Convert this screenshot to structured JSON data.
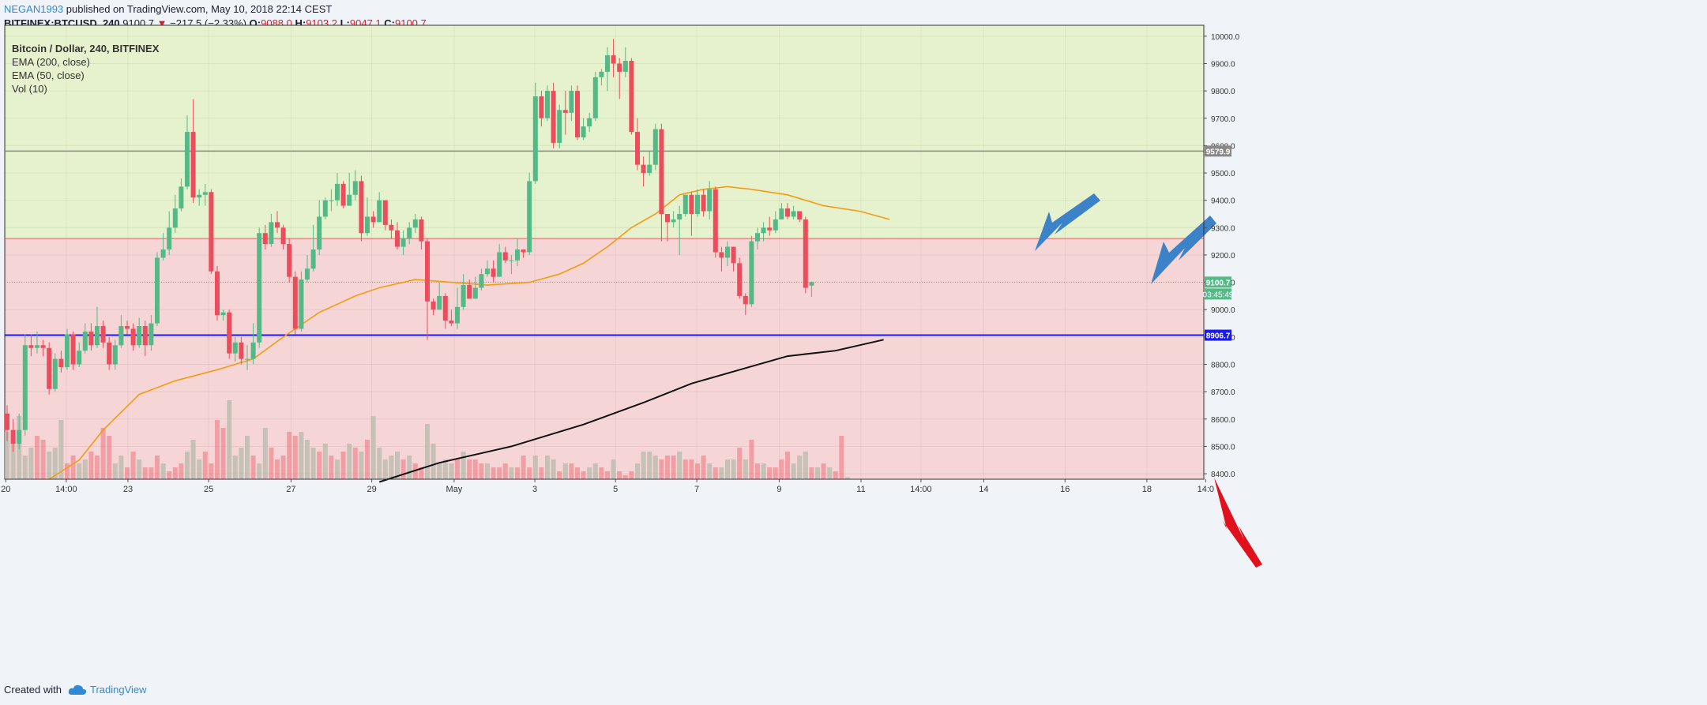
{
  "header": {
    "author": "NEGAN1993",
    "published_text": "published on TradingView.com, May 10, 2018 22:14 CEST",
    "symbol": "BITFINEX:BTCUSD, 240",
    "last": "9100.7",
    "change_arrow": "▼",
    "change": "−217.5 (−2.33%)",
    "o_label": "O:",
    "o_value": "9088.0",
    "h_label": "H:",
    "h_value": "9103.2",
    "l_label": "L:",
    "l_value": "9047.1",
    "c_label": "C:",
    "c_value": "9100.7"
  },
  "legend": {
    "title": "Bitcoin / Dollar, 240, BITFINEX",
    "ema200": "EMA (200, close)",
    "ema50": "EMA (50, close)",
    "vol": "Vol (10)"
  },
  "footer": {
    "created_with": "Created with",
    "brand": "TradingView"
  },
  "colors": {
    "up": "#53b987",
    "down": "#eb4d5c",
    "zone_green": "#e6f2cd",
    "zone_red": "#f5d5d5",
    "support_line": "#1a1aee",
    "ema50": "#f39c12",
    "ema200": "#111111",
    "blue_arrow": "#3b82c8",
    "red_arrow": "#e0101c"
  },
  "chart_data": {
    "type": "candlestick",
    "y_axis": {
      "min": 8380,
      "max": 10040,
      "ticks": [
        10000.0,
        9900.0,
        9800.0,
        9700.0,
        9600.0,
        9500.0,
        9400.0,
        9300.0,
        9200.0,
        9100.0,
        9000.0,
        8900.0,
        8800.0,
        8700.0,
        8600.0,
        8500.0,
        8400.0
      ]
    },
    "x_axis": {
      "labels": [
        "20",
        "14:00",
        "23",
        "25",
        "27",
        "29",
        "May",
        "3",
        "5",
        "7",
        "9",
        "11",
        "14:00",
        "14",
        "16",
        "18",
        "14:0"
      ]
    },
    "price_labels": {
      "upper_line": "9579.9",
      "last_price": "9100.7",
      "countdown": "03:45:49",
      "support": "8906.7"
    },
    "levels": {
      "upper_line": 9579.9,
      "zone_split": 9260,
      "last_price": 9100.7,
      "support": 8906.7
    },
    "candles": [
      [
        8620,
        8560,
        8520,
        8650
      ],
      [
        8560,
        8510,
        8480,
        8600
      ],
      [
        8510,
        8560,
        8490,
        8620
      ],
      [
        8560,
        8870,
        8540,
        8910
      ],
      [
        8870,
        8860,
        8830,
        8910
      ],
      [
        8860,
        8870,
        8840,
        8920
      ],
      [
        8870,
        8860,
        8830,
        8890
      ],
      [
        8860,
        8710,
        8690,
        8880
      ],
      [
        8710,
        8820,
        8700,
        8840
      ],
      [
        8820,
        8790,
        8770,
        8850
      ],
      [
        8790,
        8910,
        8780,
        8930
      ],
      [
        8910,
        8800,
        8780,
        8920
      ],
      [
        8800,
        8850,
        8790,
        8880
      ],
      [
        8850,
        8920,
        8840,
        8950
      ],
      [
        8920,
        8870,
        8850,
        8950
      ],
      [
        8870,
        8940,
        8860,
        9010
      ],
      [
        8940,
        8880,
        8860,
        8960
      ],
      [
        8880,
        8800,
        8780,
        8900
      ],
      [
        8800,
        8870,
        8780,
        8890
      ],
      [
        8870,
        8940,
        8860,
        8980
      ],
      [
        8940,
        8930,
        8910,
        8960
      ],
      [
        8930,
        8870,
        8850,
        8950
      ],
      [
        8870,
        8940,
        8860,
        8970
      ],
      [
        8940,
        8870,
        8830,
        8960
      ],
      [
        8870,
        8950,
        8850,
        8980
      ],
      [
        8950,
        9190,
        8940,
        9210
      ],
      [
        9190,
        9220,
        9180,
        9280
      ],
      [
        9220,
        9300,
        9200,
        9360
      ],
      [
        9300,
        9370,
        9280,
        9420
      ],
      [
        9370,
        9450,
        9360,
        9480
      ],
      [
        9450,
        9650,
        9440,
        9710
      ],
      [
        9650,
        9410,
        9390,
        9770
      ],
      [
        9410,
        9420,
        9380,
        9440
      ],
      [
        9420,
        9430,
        9380,
        9460
      ],
      [
        9430,
        9140,
        9130,
        9440
      ],
      [
        9140,
        8980,
        8960,
        9160
      ],
      [
        8980,
        8990,
        8960,
        9000
      ],
      [
        8990,
        8840,
        8820,
        9000
      ],
      [
        8840,
        8880,
        8810,
        8900
      ],
      [
        8880,
        8820,
        8800,
        8900
      ],
      [
        8820,
        8820,
        8780,
        8870
      ],
      [
        8820,
        8880,
        8800,
        8950
      ],
      [
        8880,
        9280,
        8860,
        9300
      ],
      [
        9280,
        9240,
        9220,
        9310
      ],
      [
        9240,
        9320,
        9230,
        9350
      ],
      [
        9320,
        9300,
        9280,
        9360
      ],
      [
        9300,
        9240,
        9220,
        9310
      ],
      [
        9240,
        9120,
        9100,
        9260
      ],
      [
        9120,
        8930,
        8910,
        9140
      ],
      [
        8930,
        9110,
        8920,
        9140
      ],
      [
        9110,
        9150,
        9100,
        9200
      ],
      [
        9150,
        9220,
        9140,
        9310
      ],
      [
        9220,
        9340,
        9200,
        9400
      ],
      [
        9340,
        9400,
        9330,
        9410
      ],
      [
        9400,
        9400,
        9360,
        9440
      ],
      [
        9400,
        9460,
        9380,
        9500
      ],
      [
        9460,
        9380,
        9370,
        9470
      ],
      [
        9380,
        9420,
        9380,
        9500
      ],
      [
        9420,
        9470,
        9400,
        9510
      ],
      [
        9470,
        9280,
        9250,
        9490
      ],
      [
        9280,
        9340,
        9270,
        9410
      ],
      [
        9340,
        9320,
        9300,
        9360
      ],
      [
        9320,
        9400,
        9320,
        9430
      ],
      [
        9400,
        9310,
        9290,
        9400
      ],
      [
        9310,
        9290,
        9260,
        9330
      ],
      [
        9290,
        9230,
        9220,
        9320
      ],
      [
        9230,
        9260,
        9200,
        9290
      ],
      [
        9260,
        9300,
        9240,
        9320
      ],
      [
        9300,
        9330,
        9280,
        9350
      ],
      [
        9330,
        9250,
        9220,
        9340
      ],
      [
        9250,
        9030,
        8890,
        9260
      ],
      [
        9030,
        9000,
        8980,
        9040
      ],
      [
        9000,
        9050,
        9000,
        9100
      ],
      [
        9050,
        8960,
        8930,
        9060
      ],
      [
        8960,
        8950,
        8940,
        9000
      ],
      [
        8950,
        9010,
        8930,
        9080
      ],
      [
        9010,
        9090,
        9000,
        9130
      ],
      [
        9090,
        9040,
        9040,
        9110
      ],
      [
        9040,
        9080,
        9040,
        9120
      ],
      [
        9080,
        9130,
        9070,
        9150
      ],
      [
        9130,
        9150,
        9120,
        9180
      ],
      [
        9150,
        9120,
        9100,
        9180
      ],
      [
        9120,
        9210,
        9120,
        9240
      ],
      [
        9210,
        9180,
        9170,
        9230
      ],
      [
        9180,
        9180,
        9130,
        9200
      ],
      [
        9180,
        9220,
        9160,
        9260
      ],
      [
        9220,
        9210,
        9190,
        9220
      ],
      [
        9210,
        9470,
        9200,
        9500
      ],
      [
        9470,
        9780,
        9460,
        9830
      ],
      [
        9780,
        9700,
        9670,
        9800
      ],
      [
        9700,
        9800,
        9690,
        9820
      ],
      [
        9800,
        9610,
        9590,
        9830
      ],
      [
        9610,
        9730,
        9590,
        9750
      ],
      [
        9730,
        9720,
        9640,
        9800
      ],
      [
        9720,
        9800,
        9690,
        9820
      ],
      [
        9800,
        9630,
        9620,
        9820
      ],
      [
        9630,
        9670,
        9620,
        9700
      ],
      [
        9670,
        9700,
        9650,
        9720
      ],
      [
        9700,
        9850,
        9690,
        9870
      ],
      [
        9850,
        9870,
        9820,
        9880
      ],
      [
        9870,
        9930,
        9800,
        9960
      ],
      [
        9930,
        9900,
        9850,
        9990
      ],
      [
        9900,
        9870,
        9770,
        9920
      ],
      [
        9870,
        9910,
        9850,
        9960
      ],
      [
        9910,
        9650,
        9640,
        9920
      ],
      [
        9650,
        9530,
        9510,
        9700
      ],
      [
        9530,
        9500,
        9450,
        9560
      ],
      [
        9500,
        9530,
        9490,
        9580
      ],
      [
        9530,
        9660,
        9510,
        9680
      ],
      [
        9660,
        9350,
        9250,
        9680
      ],
      [
        9350,
        9320,
        9250,
        9340
      ],
      [
        9320,
        9330,
        9300,
        9360
      ],
      [
        9330,
        9350,
        9200,
        9380
      ],
      [
        9350,
        9420,
        9340,
        9420
      ],
      [
        9420,
        9350,
        9270,
        9430
      ],
      [
        9350,
        9420,
        9340,
        9440
      ],
      [
        9420,
        9360,
        9340,
        9440
      ],
      [
        9360,
        9440,
        9330,
        9470
      ],
      [
        9440,
        9210,
        9190,
        9450
      ],
      [
        9210,
        9190,
        9140,
        9230
      ],
      [
        9190,
        9230,
        9160,
        9250
      ],
      [
        9230,
        9170,
        9140,
        9230
      ],
      [
        9170,
        9050,
        9040,
        9190
      ],
      [
        9050,
        9020,
        8980,
        9060
      ],
      [
        9020,
        9250,
        9010,
        9270
      ],
      [
        9250,
        9280,
        9220,
        9300
      ],
      [
        9280,
        9300,
        9250,
        9320
      ],
      [
        9300,
        9290,
        9270,
        9340
      ],
      [
        9290,
        9330,
        9280,
        9360
      ],
      [
        9330,
        9370,
        9330,
        9390
      ],
      [
        9370,
        9340,
        9330,
        9390
      ],
      [
        9340,
        9360,
        9330,
        9380
      ],
      [
        9360,
        9330,
        9320,
        9360
      ],
      [
        9330,
        9080,
        9060,
        9340
      ],
      [
        9088,
        9100.7,
        9047.1,
        9103.2
      ]
    ],
    "volumes": [
      [
        120,
        1
      ],
      [
        95,
        1
      ],
      [
        160,
        1
      ],
      [
        60,
        1
      ],
      [
        80,
        1
      ],
      [
        110,
        0
      ],
      [
        100,
        0
      ],
      [
        70,
        1
      ],
      [
        80,
        1
      ],
      [
        150,
        1
      ],
      [
        40,
        0
      ],
      [
        60,
        0
      ],
      [
        40,
        1
      ],
      [
        50,
        1
      ],
      [
        70,
        0
      ],
      [
        60,
        0
      ],
      [
        130,
        0
      ],
      [
        110,
        0
      ],
      [
        40,
        1
      ],
      [
        60,
        1
      ],
      [
        30,
        0
      ],
      [
        70,
        0
      ],
      [
        50,
        1
      ],
      [
        30,
        0
      ],
      [
        30,
        0
      ],
      [
        60,
        0
      ],
      [
        40,
        1
      ],
      [
        20,
        0
      ],
      [
        30,
        0
      ],
      [
        40,
        0
      ],
      [
        70,
        1
      ],
      [
        100,
        1
      ],
      [
        50,
        1
      ],
      [
        70,
        0
      ],
      [
        40,
        0
      ],
      [
        150,
        0
      ],
      [
        130,
        0
      ],
      [
        200,
        1
      ],
      [
        60,
        1
      ],
      [
        80,
        1
      ],
      [
        110,
        1
      ],
      [
        60,
        0
      ],
      [
        40,
        1
      ],
      [
        130,
        1
      ],
      [
        80,
        0
      ],
      [
        50,
        0
      ],
      [
        60,
        0
      ],
      [
        120,
        0
      ],
      [
        110,
        0
      ],
      [
        120,
        1
      ],
      [
        100,
        1
      ],
      [
        80,
        1
      ],
      [
        70,
        0
      ],
      [
        90,
        1
      ],
      [
        60,
        0
      ],
      [
        50,
        1
      ],
      [
        70,
        0
      ],
      [
        90,
        1
      ],
      [
        80,
        0
      ],
      [
        70,
        1
      ],
      [
        100,
        0
      ],
      [
        160,
        1
      ],
      [
        80,
        1
      ],
      [
        50,
        1
      ],
      [
        60,
        1
      ],
      [
        70,
        1
      ],
      [
        50,
        0
      ],
      [
        60,
        1
      ],
      [
        40,
        0
      ],
      [
        30,
        0
      ],
      [
        140,
        1
      ],
      [
        90,
        1
      ],
      [
        40,
        1
      ],
      [
        50,
        1
      ],
      [
        40,
        1
      ],
      [
        50,
        0
      ],
      [
        70,
        1
      ],
      [
        50,
        0
      ],
      [
        50,
        0
      ],
      [
        40,
        0
      ],
      [
        40,
        1
      ],
      [
        30,
        0
      ],
      [
        30,
        0
      ],
      [
        40,
        0
      ],
      [
        30,
        1
      ],
      [
        30,
        0
      ],
      [
        60,
        0
      ],
      [
        30,
        0
      ],
      [
        60,
        1
      ],
      [
        30,
        0
      ],
      [
        60,
        1
      ],
      [
        50,
        1
      ],
      [
        20,
        0
      ],
      [
        40,
        1
      ],
      [
        40,
        0
      ],
      [
        30,
        0
      ],
      [
        20,
        0
      ],
      [
        30,
        1
      ],
      [
        40,
        1
      ],
      [
        30,
        0
      ],
      [
        20,
        0
      ],
      [
        50,
        1
      ],
      [
        20,
        0
      ],
      [
        10,
        0
      ],
      [
        20,
        0
      ],
      [
        40,
        1
      ],
      [
        70,
        1
      ],
      [
        70,
        1
      ],
      [
        60,
        1
      ],
      [
        50,
        0
      ],
      [
        60,
        0
      ],
      [
        60,
        0
      ],
      [
        70,
        1
      ],
      [
        50,
        0
      ],
      [
        50,
        0
      ],
      [
        40,
        0
      ],
      [
        60,
        0
      ],
      [
        40,
        1
      ],
      [
        30,
        0
      ],
      [
        30,
        1
      ],
      [
        50,
        1
      ],
      [
        50,
        1
      ],
      [
        80,
        0
      ],
      [
        50,
        1
      ],
      [
        100,
        0
      ],
      [
        40,
        0
      ],
      [
        40,
        1
      ],
      [
        30,
        0
      ],
      [
        30,
        0
      ],
      [
        50,
        0
      ],
      [
        70,
        0
      ],
      [
        40,
        1
      ],
      [
        60,
        1
      ],
      [
        70,
        1
      ],
      [
        30,
        0
      ],
      [
        30,
        1
      ],
      [
        40,
        0
      ],
      [
        30,
        1
      ],
      [
        20,
        0
      ],
      [
        110,
        0
      ],
      [
        5,
        1
      ]
    ],
    "ema50": [
      [
        7,
        8380
      ],
      [
        12,
        8450
      ],
      [
        16,
        8560
      ],
      [
        22,
        8690
      ],
      [
        28,
        8740
      ],
      [
        35,
        8780
      ],
      [
        41,
        8820
      ],
      [
        46,
        8900
      ],
      [
        52,
        8990
      ],
      [
        58,
        9050
      ],
      [
        62,
        9080
      ],
      [
        68,
        9110
      ],
      [
        74,
        9100
      ],
      [
        80,
        9090
      ],
      [
        87,
        9100
      ],
      [
        92,
        9130
      ],
      [
        96,
        9170
      ],
      [
        100,
        9230
      ],
      [
        104,
        9300
      ],
      [
        108,
        9350
      ],
      [
        112,
        9420
      ],
      [
        116,
        9440
      ],
      [
        120,
        9450
      ],
      [
        124,
        9440
      ],
      [
        130,
        9420
      ],
      [
        136,
        9380
      ],
      [
        142,
        9360
      ],
      [
        147,
        9330
      ]
    ],
    "ema200": [
      [
        62,
        8370
      ],
      [
        72,
        8440
      ],
      [
        84,
        8500
      ],
      [
        96,
        8580
      ],
      [
        106,
        8660
      ],
      [
        114,
        8730
      ],
      [
        122,
        8780
      ],
      [
        130,
        8830
      ],
      [
        138,
        8850
      ],
      [
        146,
        8890
      ]
    ]
  }
}
